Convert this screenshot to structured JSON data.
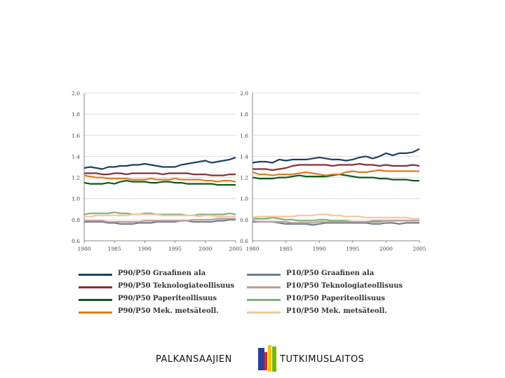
{
  "chart_data": [
    {
      "type": "line",
      "x": [
        1980,
        1981,
        1982,
        1983,
        1984,
        1985,
        1986,
        1987,
        1988,
        1989,
        1990,
        1991,
        1992,
        1993,
        1994,
        1995,
        1996,
        1997,
        1998,
        1999,
        2000,
        2001,
        2002,
        2003,
        2004,
        2005
      ],
      "xticks": [
        "1980",
        "1985",
        "1990",
        "1995",
        "2000",
        "2005"
      ],
      "yticks": [
        "0.6",
        "0.8",
        "1.0",
        "1.2",
        "1.4",
        "1.6",
        "1.8",
        "2.0"
      ],
      "ylim": [
        0.6,
        2.0
      ],
      "series": [
        {
          "name": "P90/P50 Graafinen ala",
          "color": "#1f3f66",
          "values": [
            1.29,
            1.3,
            1.29,
            1.28,
            1.3,
            1.3,
            1.31,
            1.31,
            1.32,
            1.32,
            1.33,
            1.32,
            1.31,
            1.3,
            1.3,
            1.3,
            1.32,
            1.33,
            1.34,
            1.35,
            1.36,
            1.34,
            1.35,
            1.36,
            1.37,
            1.39
          ]
        },
        {
          "name": "P90/P50 Teknologiateollisuus",
          "color": "#8b2e3a",
          "values": [
            1.24,
            1.24,
            1.24,
            1.23,
            1.23,
            1.24,
            1.24,
            1.23,
            1.24,
            1.24,
            1.24,
            1.24,
            1.24,
            1.23,
            1.24,
            1.24,
            1.24,
            1.24,
            1.23,
            1.23,
            1.23,
            1.22,
            1.22,
            1.22,
            1.23,
            1.23
          ]
        },
        {
          "name": "P90/P50 Paperiteollisuus",
          "color": "#0f5a1a",
          "values": [
            1.15,
            1.14,
            1.14,
            1.14,
            1.15,
            1.14,
            1.16,
            1.17,
            1.16,
            1.16,
            1.16,
            1.15,
            1.15,
            1.16,
            1.16,
            1.15,
            1.15,
            1.14,
            1.14,
            1.14,
            1.14,
            1.14,
            1.13,
            1.13,
            1.13,
            1.13
          ]
        },
        {
          "name": "P90/P50 Mek. metsäteoll.",
          "color": "#e07b1f",
          "values": [
            1.22,
            1.21,
            1.2,
            1.2,
            1.19,
            1.19,
            1.19,
            1.19,
            1.18,
            1.18,
            1.18,
            1.19,
            1.18,
            1.18,
            1.18,
            1.19,
            1.18,
            1.18,
            1.18,
            1.18,
            1.17,
            1.17,
            1.16,
            1.17,
            1.17,
            1.16
          ]
        },
        {
          "name": "P10/P50 Paperiteollisuus",
          "color": "#7fb07f",
          "values": [
            0.85,
            0.86,
            0.86,
            0.86,
            0.86,
            0.87,
            0.86,
            0.86,
            0.85,
            0.85,
            0.86,
            0.86,
            0.85,
            0.85,
            0.85,
            0.85,
            0.85,
            0.84,
            0.84,
            0.85,
            0.85,
            0.85,
            0.85,
            0.85,
            0.86,
            0.85
          ]
        },
        {
          "name": "P10/P50 Mek. metsäteoll.",
          "color": "#f3c898",
          "values": [
            0.83,
            0.83,
            0.84,
            0.84,
            0.84,
            0.84,
            0.84,
            0.84,
            0.85,
            0.85,
            0.85,
            0.85,
            0.85,
            0.84,
            0.84,
            0.84,
            0.84,
            0.84,
            0.84,
            0.83,
            0.84,
            0.84,
            0.83,
            0.83,
            0.83,
            0.83
          ]
        },
        {
          "name": "P10/P50 Graafinen ala",
          "color": "#6d7f8f",
          "values": [
            0.78,
            0.78,
            0.78,
            0.78,
            0.77,
            0.77,
            0.76,
            0.76,
            0.76,
            0.77,
            0.77,
            0.77,
            0.78,
            0.78,
            0.78,
            0.78,
            0.79,
            0.79,
            0.78,
            0.78,
            0.78,
            0.78,
            0.79,
            0.79,
            0.8,
            0.8
          ]
        },
        {
          "name": "P10/P50 Teknologiateollisuus",
          "color": "#c29a9a",
          "values": [
            0.79,
            0.79,
            0.79,
            0.79,
            0.78,
            0.78,
            0.78,
            0.78,
            0.78,
            0.78,
            0.79,
            0.79,
            0.79,
            0.79,
            0.79,
            0.79,
            0.79,
            0.79,
            0.8,
            0.8,
            0.8,
            0.8,
            0.81,
            0.81,
            0.81,
            0.81
          ]
        }
      ]
    },
    {
      "type": "line",
      "x": [
        1980,
        1981,
        1982,
        1983,
        1984,
        1985,
        1986,
        1987,
        1988,
        1989,
        1990,
        1991,
        1992,
        1993,
        1994,
        1995,
        1996,
        1997,
        1998,
        1999,
        2000,
        2001,
        2002,
        2003,
        2004,
        2005
      ],
      "xticks": [
        "1980",
        "1985",
        "1990",
        "1995",
        "2000",
        "2005"
      ],
      "yticks": [
        "0.6",
        "0.8",
        "1.0",
        "1.2",
        "1.4",
        "1.6",
        "1.8",
        "2.0"
      ],
      "ylim": [
        0.6,
        2.0
      ],
      "series": [
        {
          "name": "P90/P50 Graafinen ala",
          "color": "#1f3f66",
          "values": [
            1.34,
            1.35,
            1.35,
            1.34,
            1.37,
            1.36,
            1.37,
            1.37,
            1.37,
            1.38,
            1.39,
            1.38,
            1.37,
            1.37,
            1.36,
            1.37,
            1.39,
            1.4,
            1.38,
            1.4,
            1.43,
            1.41,
            1.43,
            1.43,
            1.44,
            1.47
          ]
        },
        {
          "name": "P90/P50 Teknologiateollisuus",
          "color": "#8b2e3a",
          "values": [
            1.28,
            1.28,
            1.28,
            1.27,
            1.28,
            1.29,
            1.31,
            1.32,
            1.32,
            1.32,
            1.32,
            1.32,
            1.31,
            1.32,
            1.32,
            1.32,
            1.33,
            1.32,
            1.32,
            1.31,
            1.32,
            1.31,
            1.31,
            1.31,
            1.32,
            1.31
          ]
        },
        {
          "name": "P90/P50 Paperiteollisuus",
          "color": "#0f5a1a",
          "values": [
            1.2,
            1.19,
            1.19,
            1.19,
            1.2,
            1.2,
            1.21,
            1.22,
            1.21,
            1.21,
            1.21,
            1.21,
            1.22,
            1.23,
            1.22,
            1.21,
            1.2,
            1.2,
            1.2,
            1.19,
            1.19,
            1.18,
            1.18,
            1.18,
            1.17,
            1.17
          ]
        },
        {
          "name": "P90/P50 Mek. metsäteoll.",
          "color": "#e07b1f",
          "values": [
            1.25,
            1.23,
            1.23,
            1.22,
            1.23,
            1.23,
            1.23,
            1.24,
            1.25,
            1.24,
            1.23,
            1.22,
            1.23,
            1.23,
            1.25,
            1.26,
            1.25,
            1.25,
            1.26,
            1.27,
            1.26,
            1.26,
            1.26,
            1.26,
            1.26,
            1.26
          ]
        },
        {
          "name": "P10/P50 Paperiteollisuus",
          "color": "#7fb07f",
          "values": [
            0.81,
            0.81,
            0.81,
            0.82,
            0.81,
            0.8,
            0.8,
            0.79,
            0.79,
            0.79,
            0.8,
            0.8,
            0.79,
            0.79,
            0.79,
            0.78,
            0.78,
            0.78,
            0.78,
            0.78,
            0.79,
            0.79,
            0.79,
            0.79,
            0.79,
            0.79
          ]
        },
        {
          "name": "P10/P50 Mek. metsäteoll.",
          "color": "#f3c898",
          "values": [
            0.82,
            0.83,
            0.83,
            0.83,
            0.83,
            0.83,
            0.83,
            0.84,
            0.84,
            0.84,
            0.85,
            0.85,
            0.84,
            0.84,
            0.83,
            0.83,
            0.83,
            0.82,
            0.82,
            0.82,
            0.82,
            0.82,
            0.82,
            0.82,
            0.81,
            0.81
          ]
        },
        {
          "name": "P10/P50 Graafinen ala",
          "color": "#6d7f8f",
          "values": [
            0.78,
            0.78,
            0.78,
            0.78,
            0.77,
            0.76,
            0.76,
            0.76,
            0.76,
            0.75,
            0.76,
            0.77,
            0.77,
            0.77,
            0.77,
            0.77,
            0.77,
            0.77,
            0.76,
            0.76,
            0.77,
            0.77,
            0.76,
            0.77,
            0.77,
            0.77
          ]
        },
        {
          "name": "P10/P50 Teknologiateollisuus",
          "color": "#c29a9a",
          "values": [
            0.79,
            0.78,
            0.78,
            0.78,
            0.78,
            0.78,
            0.77,
            0.77,
            0.77,
            0.77,
            0.78,
            0.78,
            0.78,
            0.78,
            0.78,
            0.78,
            0.78,
            0.78,
            0.79,
            0.79,
            0.79,
            0.79,
            0.79,
            0.79,
            0.79,
            0.79
          ]
        }
      ]
    }
  ],
  "legend": {
    "left": [
      {
        "label": "P90/P50 Graafinen ala",
        "color": "#1f3f66"
      },
      {
        "label": "P90/P50 Teknologiateollisuus",
        "color": "#8b2e3a"
      },
      {
        "label": "P90/P50 Paperiteollisuus",
        "color": "#0f5a1a"
      },
      {
        "label": "P90/P50 Mek. metsäteoll.",
        "color": "#e07b1f"
      }
    ],
    "right": [
      {
        "label": "P10/P50 Graafinen ala",
        "color": "#6d7f8f"
      },
      {
        "label": "P10/P50 Teknologiateollisuus",
        "color": "#c29a9a"
      },
      {
        "label": "P10/P50 Paperiteollisuus",
        "color": "#7fb07f"
      },
      {
        "label": "P10/P50 Mek. metsäteoll.",
        "color": "#f3c898"
      }
    ]
  },
  "footer": {
    "left_text": "PALKANSAAJIEN",
    "right_text": "TUTKIMUSLAITOS",
    "logo_colors": [
      "#2b3f9e",
      "#d9262b",
      "#f2c200",
      "#7ab800"
    ]
  }
}
